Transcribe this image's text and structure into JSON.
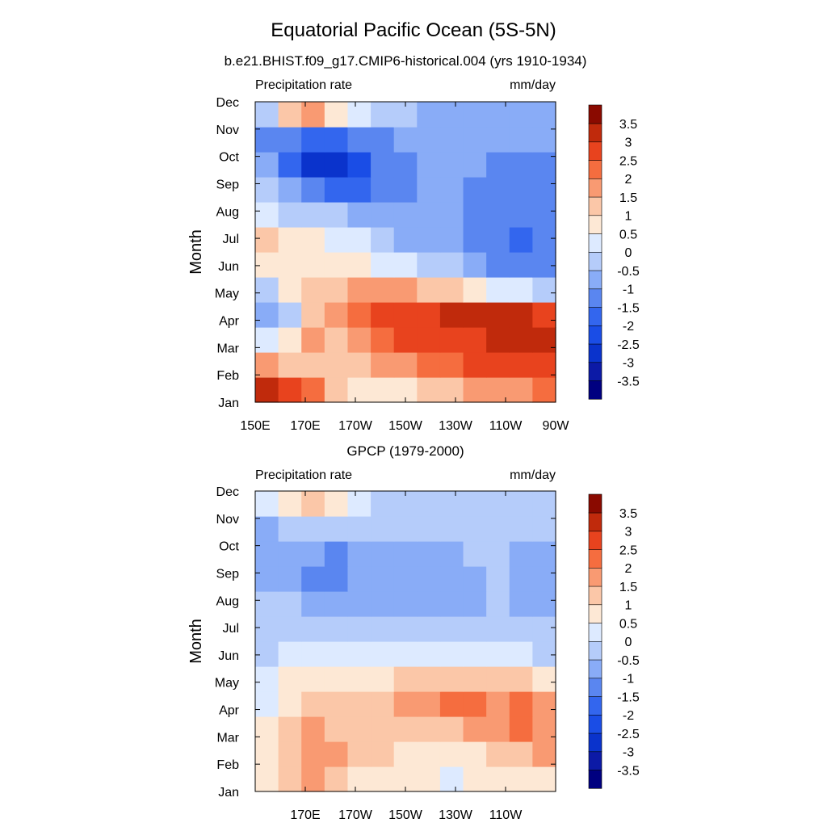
{
  "figure": {
    "title": "Equatorial Pacific Ocean (5S-5N)"
  },
  "colorbar": {
    "levels": [
      -3.5,
      -3,
      -2.5,
      -2,
      -1.5,
      -1,
      -0.5,
      0,
      0.5,
      1,
      1.5,
      2,
      2.5,
      3,
      3.5
    ],
    "labels": [
      "-3.5",
      "-3",
      "-2.5",
      "-2",
      "-1.5",
      "-1",
      "-0.5",
      "0",
      "0.5",
      "1",
      "1.5",
      "2",
      "2.5",
      "3",
      "3.5"
    ],
    "colors": [
      "#000080",
      "#0c1aa6",
      "#0a33cc",
      "#1a4de6",
      "#3366ee",
      "#5a86f0",
      "#89acf7",
      "#b5ccfa",
      "#ddeaff",
      "#fde8d5",
      "#fbc7a8",
      "#f99a72",
      "#f56d3f",
      "#e8431e",
      "#c02a0c",
      "#8a0a00"
    ]
  },
  "chart_data": [
    {
      "type": "heatmap",
      "title": "b.e21.BHIST.f09_g17.CMIP6-historical.004 (yrs 1910-1934)",
      "subtitle_left": "Precipitation rate",
      "subtitle_right": "mm/day",
      "ylabel": "Month",
      "x_tick_labels": [
        "150E",
        "170E",
        "170W",
        "150W",
        "130W",
        "110W",
        "90W"
      ],
      "y_tick_labels": [
        "Jan",
        "Feb",
        "Mar",
        "Apr",
        "May",
        "Jun",
        "Jul",
        "Aug",
        "Sep",
        "Oct",
        "Nov",
        "Dec"
      ],
      "x_range": [
        "150E",
        "90W"
      ],
      "units": "mm/day",
      "rows": [
        [
          3.0,
          2.5,
          2.0,
          1.0,
          0.5,
          0.5,
          0.5,
          1.0,
          1.0,
          1.5,
          1.5,
          1.5,
          2.0
        ],
        [
          1.5,
          1.0,
          1.0,
          1.0,
          1.0,
          1.5,
          1.5,
          2.0,
          2.0,
          2.5,
          2.5,
          2.5,
          2.5
        ],
        [
          0.0,
          0.5,
          1.5,
          1.0,
          1.5,
          2.0,
          2.5,
          2.5,
          2.5,
          2.5,
          3.0,
          3.0,
          3.0
        ],
        [
          -1.0,
          -0.5,
          1.0,
          1.5,
          2.0,
          2.5,
          2.5,
          2.5,
          3.0,
          3.0,
          3.0,
          3.0,
          2.5
        ],
        [
          -0.5,
          0.5,
          1.0,
          1.0,
          1.5,
          1.5,
          1.5,
          1.0,
          1.0,
          0.5,
          0.0,
          0.0,
          -0.5
        ],
        [
          0.5,
          0.5,
          0.5,
          0.5,
          0.5,
          0.0,
          0.0,
          -0.5,
          -0.5,
          -1.0,
          -1.5,
          -1.5,
          -1.5
        ],
        [
          1.0,
          0.5,
          0.5,
          0.0,
          0.0,
          -0.5,
          -1.0,
          -1.0,
          -1.0,
          -1.5,
          -1.5,
          -2.0,
          -1.5
        ],
        [
          0.0,
          -0.5,
          -0.5,
          -0.5,
          -1.0,
          -1.0,
          -1.0,
          -1.0,
          -1.0,
          -1.5,
          -1.5,
          -1.5,
          -1.5
        ],
        [
          -0.5,
          -1.0,
          -1.5,
          -2.0,
          -2.0,
          -1.5,
          -1.5,
          -1.0,
          -1.0,
          -1.5,
          -1.5,
          -1.5,
          -1.5
        ],
        [
          -1.0,
          -2.0,
          -3.0,
          -3.0,
          -2.5,
          -1.5,
          -1.5,
          -1.0,
          -1.0,
          -1.0,
          -1.5,
          -1.5,
          -1.5
        ],
        [
          -1.5,
          -1.5,
          -2.0,
          -2.0,
          -1.5,
          -1.5,
          -1.0,
          -1.0,
          -1.0,
          -1.0,
          -1.0,
          -1.0,
          -1.0
        ],
        [
          -0.5,
          1.0,
          1.5,
          0.5,
          0.0,
          -0.5,
          -0.5,
          -1.0,
          -1.0,
          -1.0,
          -1.0,
          -1.0,
          -1.0
        ]
      ]
    },
    {
      "type": "heatmap",
      "title": "GPCP (1979-2000)",
      "subtitle_left": "Precipitation rate",
      "subtitle_right": "mm/day",
      "ylabel": "Month",
      "x_tick_labels": [
        "",
        "170E",
        "170W",
        "150W",
        "130W",
        "110W",
        ""
      ],
      "y_tick_labels": [
        "Jan",
        "Feb",
        "Mar",
        "Apr",
        "May",
        "Jun",
        "Jul",
        "Aug",
        "Sep",
        "Oct",
        "Nov",
        "Dec"
      ],
      "x_range": [
        "150E",
        "90W"
      ],
      "units": "mm/day",
      "rows": [
        [
          0.5,
          1.0,
          1.5,
          1.0,
          0.5,
          0.5,
          0.5,
          0.5,
          0.0,
          0.5,
          0.5,
          0.5,
          0.5
        ],
        [
          0.5,
          1.0,
          1.5,
          1.5,
          1.0,
          1.0,
          0.5,
          0.5,
          0.5,
          0.5,
          1.0,
          1.0,
          1.5
        ],
        [
          0.5,
          1.0,
          1.5,
          1.0,
          1.0,
          1.0,
          1.0,
          1.0,
          1.0,
          1.5,
          1.5,
          2.0,
          1.5
        ],
        [
          0.0,
          0.5,
          1.0,
          1.0,
          1.0,
          1.0,
          1.5,
          1.5,
          2.0,
          2.0,
          1.5,
          2.0,
          1.5
        ],
        [
          0.0,
          0.5,
          0.5,
          0.5,
          0.5,
          0.5,
          1.0,
          1.0,
          1.0,
          1.0,
          1.0,
          1.0,
          0.5
        ],
        [
          -0.5,
          0.0,
          0.0,
          0.0,
          0.0,
          0.0,
          0.0,
          0.0,
          0.0,
          0.0,
          0.0,
          0.0,
          -0.5
        ],
        [
          -0.5,
          -0.5,
          -0.5,
          -0.5,
          -0.5,
          -0.5,
          -0.5,
          -0.5,
          -0.5,
          -0.5,
          -0.5,
          -0.5,
          -0.5
        ],
        [
          -0.5,
          -0.5,
          -1.0,
          -1.0,
          -1.0,
          -1.0,
          -1.0,
          -1.0,
          -1.0,
          -1.0,
          -0.5,
          -1.0,
          -1.0
        ],
        [
          -1.0,
          -1.0,
          -1.5,
          -1.5,
          -1.0,
          -1.0,
          -1.0,
          -1.0,
          -1.0,
          -1.0,
          -0.5,
          -1.0,
          -1.0
        ],
        [
          -1.0,
          -1.0,
          -1.0,
          -1.5,
          -1.0,
          -1.0,
          -1.0,
          -1.0,
          -1.0,
          -0.5,
          -0.5,
          -1.0,
          -1.0
        ],
        [
          -1.0,
          -0.5,
          -0.5,
          -0.5,
          -0.5,
          -0.5,
          -0.5,
          -0.5,
          -0.5,
          -0.5,
          -0.5,
          -0.5,
          -0.5
        ],
        [
          0.0,
          0.5,
          1.0,
          0.5,
          0.0,
          -0.5,
          -0.5,
          -0.5,
          -0.5,
          -0.5,
          -0.5,
          -0.5,
          -0.5
        ]
      ]
    }
  ]
}
